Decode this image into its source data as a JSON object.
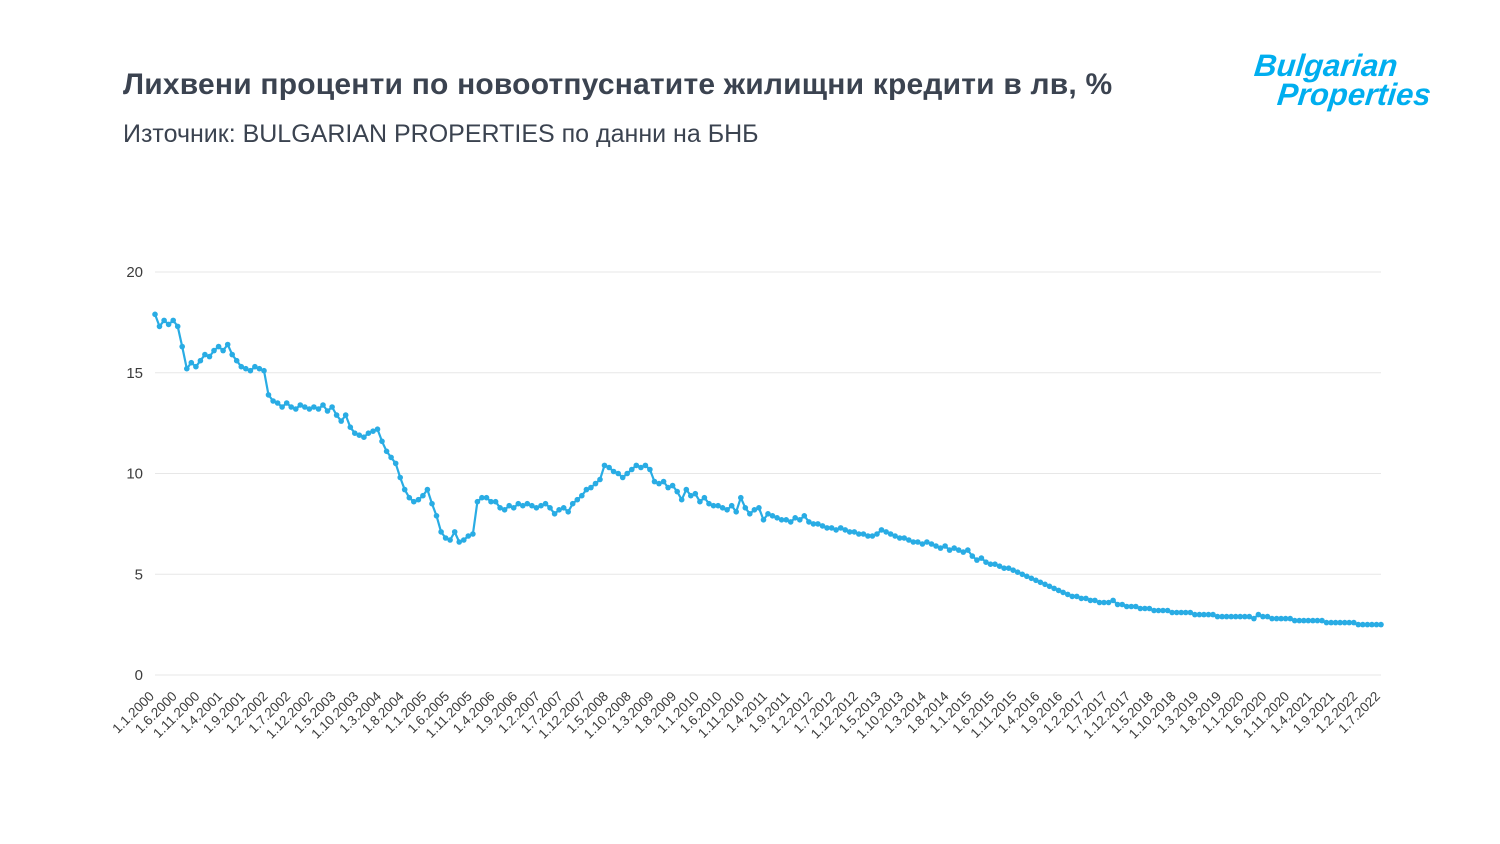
{
  "page": {
    "title": "Лихвени проценти по новоотпуснатите жилищни кредити в лв, %",
    "source": "Източник: BULGARIAN PROPERTIES по данни на БНБ"
  },
  "logo": {
    "line1": "Bulgarian",
    "line2": "Properties"
  },
  "chart_data": {
    "type": "line",
    "title": "Лихвени проценти по новоотпуснатите жилищни кредити в лв, %",
    "xlabel": "",
    "ylabel": "",
    "ylim": [
      0,
      20
    ],
    "yticks": [
      0,
      5,
      10,
      15,
      20
    ],
    "grid": true,
    "legend": "none",
    "line_color": "#29ace4",
    "grid_color": "#e7e7e7",
    "tick_color": "#3c3c3c",
    "marker": "circle",
    "frequency": "monthly",
    "x_start_label": "1.1.2000",
    "x_end_label": "1.7.2022",
    "x_tick_every": 5,
    "x_tick_labels": [
      "1.1.2000",
      "1.6.2000",
      "1.11.2000",
      "1.4.2001",
      "1.9.2001",
      "1.2.2002",
      "1.7.2002",
      "1.12.2002",
      "1.5.2003",
      "1.10.2003",
      "1.3.2004",
      "1.8.2004",
      "1.1.2005",
      "1.6.2005",
      "1.11.2005",
      "1.4.2006",
      "1.9.2006",
      "1.2.2007",
      "1.7.2007",
      "1.12.2007",
      "1.5.2008",
      "1.10.2008",
      "1.3.2009",
      "1.8.2009",
      "1.1.2010",
      "1.6.2010",
      "1.11.2010",
      "1.4.2011",
      "1.9.2011",
      "1.2.2012",
      "1.7.2012",
      "1.12.2012",
      "1.5.2013",
      "1.10.2013",
      "1.3.2014",
      "1.8.2014",
      "1.1.2015",
      "1.6.2015",
      "1.11.2015",
      "1.4.2016",
      "1.9.2016",
      "1.2.2017",
      "1.7.2017",
      "1.12.2017",
      "1.5.2018",
      "1.10.2018",
      "1.3.2019",
      "1.8.2019",
      "1.1.2020",
      "1.6.2020",
      "1.11.2020",
      "1.4.2021",
      "1.9.2021",
      "1.2.2022",
      "1.7.2022"
    ],
    "values": [
      17.9,
      17.3,
      17.6,
      17.4,
      17.6,
      17.3,
      16.3,
      15.2,
      15.5,
      15.3,
      15.6,
      15.9,
      15.8,
      16.1,
      16.3,
      16.1,
      16.4,
      15.9,
      15.6,
      15.3,
      15.2,
      15.1,
      15.3,
      15.2,
      15.1,
      13.9,
      13.6,
      13.5,
      13.3,
      13.5,
      13.3,
      13.2,
      13.4,
      13.3,
      13.2,
      13.3,
      13.2,
      13.4,
      13.1,
      13.3,
      12.9,
      12.6,
      12.9,
      12.3,
      12.0,
      11.9,
      11.8,
      12.0,
      12.1,
      12.2,
      11.6,
      11.1,
      10.8,
      10.5,
      9.8,
      9.2,
      8.8,
      8.6,
      8.7,
      8.9,
      9.2,
      8.5,
      7.9,
      7.1,
      6.8,
      6.7,
      7.1,
      6.6,
      6.7,
      6.9,
      7.0,
      8.6,
      8.8,
      8.8,
      8.6,
      8.6,
      8.3,
      8.2,
      8.4,
      8.3,
      8.5,
      8.4,
      8.5,
      8.4,
      8.3,
      8.4,
      8.5,
      8.3,
      8.0,
      8.2,
      8.3,
      8.1,
      8.5,
      8.7,
      8.9,
      9.2,
      9.3,
      9.5,
      9.7,
      10.4,
      10.3,
      10.1,
      10.0,
      9.8,
      10.0,
      10.2,
      10.4,
      10.3,
      10.4,
      10.2,
      9.6,
      9.5,
      9.6,
      9.3,
      9.4,
      9.1,
      8.7,
      9.2,
      8.9,
      9.0,
      8.6,
      8.8,
      8.5,
      8.4,
      8.4,
      8.3,
      8.2,
      8.4,
      8.1,
      8.8,
      8.3,
      8.0,
      8.2,
      8.3,
      7.7,
      8.0,
      7.9,
      7.8,
      7.7,
      7.7,
      7.6,
      7.8,
      7.7,
      7.9,
      7.6,
      7.5,
      7.5,
      7.4,
      7.3,
      7.3,
      7.2,
      7.3,
      7.2,
      7.1,
      7.1,
      7.0,
      7.0,
      6.9,
      6.9,
      7.0,
      7.2,
      7.1,
      7.0,
      6.9,
      6.8,
      6.8,
      6.7,
      6.6,
      6.6,
      6.5,
      6.6,
      6.5,
      6.4,
      6.3,
      6.4,
      6.2,
      6.3,
      6.2,
      6.1,
      6.2,
      5.9,
      5.7,
      5.8,
      5.6,
      5.5,
      5.5,
      5.4,
      5.3,
      5.3,
      5.2,
      5.1,
      5.0,
      4.9,
      4.8,
      4.7,
      4.6,
      4.5,
      4.4,
      4.3,
      4.2,
      4.1,
      4.0,
      3.9,
      3.9,
      3.8,
      3.8,
      3.7,
      3.7,
      3.6,
      3.6,
      3.6,
      3.7,
      3.5,
      3.5,
      3.4,
      3.4,
      3.4,
      3.3,
      3.3,
      3.3,
      3.2,
      3.2,
      3.2,
      3.2,
      3.1,
      3.1,
      3.1,
      3.1,
      3.1,
      3.0,
      3.0,
      3.0,
      3.0,
      3.0,
      2.9,
      2.9,
      2.9,
      2.9,
      2.9,
      2.9,
      2.9,
      2.9,
      2.8,
      3.0,
      2.9,
      2.9,
      2.8,
      2.8,
      2.8,
      2.8,
      2.8,
      2.7,
      2.7,
      2.7,
      2.7,
      2.7,
      2.7,
      2.7,
      2.6,
      2.6,
      2.6,
      2.6,
      2.6,
      2.6,
      2.6,
      2.5,
      2.5,
      2.5,
      2.5,
      2.5,
      2.5
    ]
  }
}
